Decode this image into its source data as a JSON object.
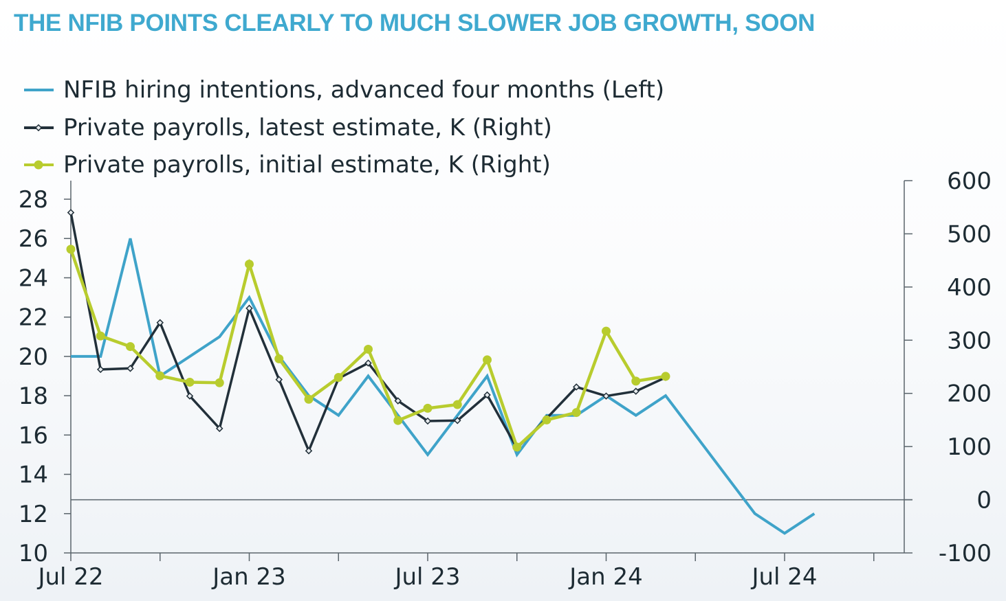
{
  "chart_data": {
    "type": "line",
    "title": "THE NFIB POINTS CLEARLY TO MUCH SLOWER JOB GROWTH, SOON",
    "months": [
      "Jul 22",
      "Aug 22",
      "Sep 22",
      "Oct 22",
      "Nov 22",
      "Dec 22",
      "Jan 23",
      "Feb 23",
      "Mar 23",
      "Apr 23",
      "May 23",
      "Jun 23",
      "Jul 23",
      "Aug 23",
      "Sep 23",
      "Oct 23",
      "Nov 23",
      "Dec 23",
      "Jan 24",
      "Feb 24",
      "Mar 24",
      "Apr 24",
      "May 24",
      "Jun 24",
      "Jul 24",
      "Aug 24",
      "Sep 24",
      "Oct 24",
      "Nov 24"
    ],
    "x_tick_labels": [
      {
        "month": "Jul 22",
        "label": "Jul 22"
      },
      {
        "month": "Jan 23",
        "label": "Jan 23"
      },
      {
        "month": "Jul 23",
        "label": "Jul 23"
      },
      {
        "month": "Jan 24",
        "label": "Jan 24"
      },
      {
        "month": "Jul 24",
        "label": "Jul 24"
      }
    ],
    "minor_ticks": [
      "Oct 22",
      "Apr 23",
      "Oct 23",
      "Apr 24",
      "Oct 24"
    ],
    "y_left": {
      "min": 10,
      "max": 28,
      "ticks": [
        10,
        12,
        14,
        16,
        18,
        20,
        22,
        24,
        26,
        28
      ]
    },
    "y_right": {
      "min": -100,
      "max": 600,
      "ticks": [
        -100,
        0,
        100,
        200,
        300,
        400,
        500,
        600
      ]
    },
    "grid": false,
    "legend_position": "top-left",
    "series": [
      {
        "name": "NFIB hiring intentions, advanced four months (Left)",
        "axis": "left",
        "color": "#3fa3c9",
        "marker": "none",
        "values": [
          20,
          20,
          26,
          19,
          20,
          21,
          23,
          20,
          18,
          17,
          19,
          17,
          15,
          17,
          19,
          15,
          17,
          17,
          18,
          17,
          18,
          16,
          14,
          12,
          11,
          12
        ]
      },
      {
        "name": "Private payrolls, latest estimate, K (Right)",
        "axis": "right",
        "color": "#22303a",
        "marker": "diamond",
        "values": [
          540,
          245,
          247,
          333,
          195,
          134,
          360,
          226,
          92,
          228,
          257,
          186,
          148,
          149,
          197,
          97,
          153,
          212,
          195,
          204,
          230
        ]
      },
      {
        "name": "Private payrolls, initial estimate, K (Right)",
        "axis": "right",
        "color": "#b8cc2e",
        "marker": "circle",
        "values": [
          471,
          308,
          288,
          233,
          221,
          220,
          443,
          265,
          189,
          230,
          283,
          149,
          172,
          179,
          263,
          99,
          150,
          164,
          317,
          223,
          232
        ]
      }
    ]
  }
}
